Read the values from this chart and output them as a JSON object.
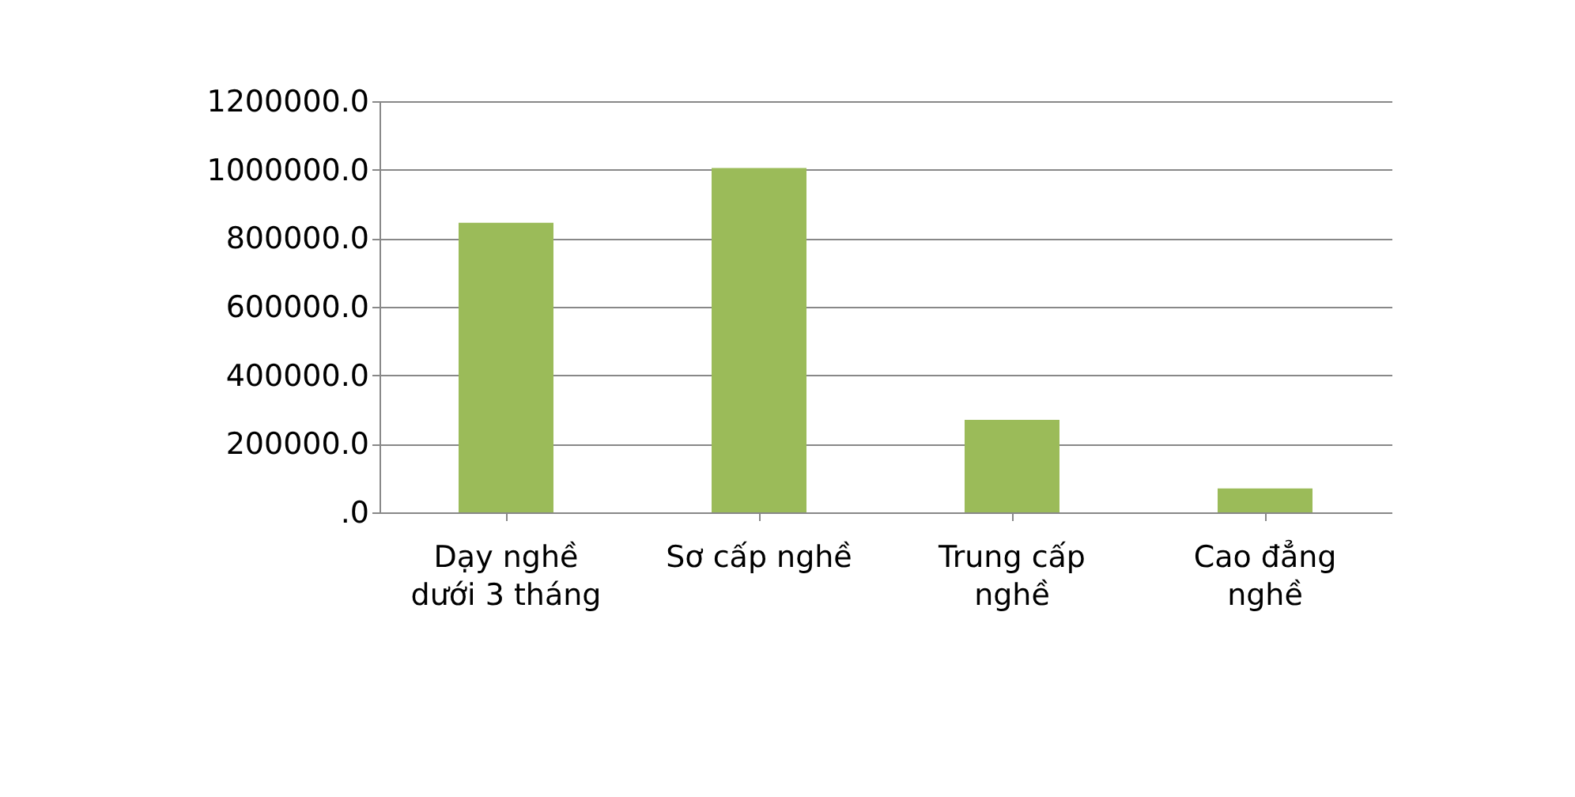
{
  "chart_data": {
    "type": "bar",
    "categories": [
      "Dạy nghề dưới 3 tháng",
      "Sơ cấp nghề",
      "Trung cấp nghề",
      "Cao đẳng nghề"
    ],
    "values": [
      845000,
      1005000,
      270000,
      70000
    ],
    "color": "#9bbb59",
    "ylim": [
      0,
      1200000
    ],
    "yticks": [
      {
        "value": 0,
        "label": ".0"
      },
      {
        "value": 200000,
        "label": "200000.0"
      },
      {
        "value": 400000,
        "label": "400000.0"
      },
      {
        "value": 600000,
        "label": "600000.0"
      },
      {
        "value": 800000,
        "label": "800000.0"
      },
      {
        "value": 1000000,
        "label": "1000000.0"
      },
      {
        "value": 1200000,
        "label": "1200000.0"
      }
    ],
    "grid": "y",
    "legend": false
  }
}
